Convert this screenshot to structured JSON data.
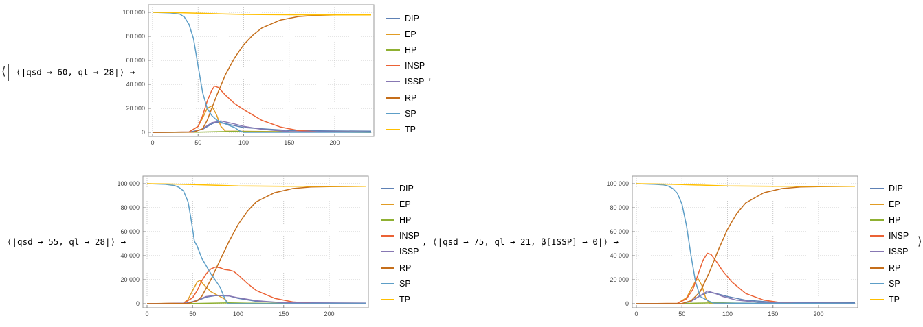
{
  "labels": {
    "top": {
      "open": "⟨",
      "text": "⟨|qsd → 60, ql → 28|⟩",
      "arrow": "→",
      "comma": ","
    },
    "bottom_left": {
      "text": "⟨|qsd → 55, ql → 28|⟩",
      "arrow": "→",
      "comma": ","
    },
    "bottom_right": {
      "text": "⟨|qsd → 75, ql → 21, β[ISSP] → 0|⟩",
      "arrow": "→",
      "close": "⟩"
    }
  },
  "legend": [
    {
      "name": "DIP",
      "color": "#5E81B5"
    },
    {
      "name": "EP",
      "color": "#E19C24"
    },
    {
      "name": "HP",
      "color": "#8FB032"
    },
    {
      "name": "INSP",
      "color": "#EB6235"
    },
    {
      "name": "ISSP",
      "color": "#8778B3"
    },
    {
      "name": "RP",
      "color": "#C56E1A"
    },
    {
      "name": "SP",
      "color": "#5D9EC7"
    },
    {
      "name": "TP",
      "color": "#FFBF00"
    }
  ],
  "chart_data": [
    {
      "type": "line",
      "xlim": [
        0,
        240
      ],
      "ylim": [
        0,
        100000
      ],
      "xticks": [
        "0",
        "50",
        "100",
        "150",
        "200"
      ],
      "yticks": [
        "0",
        "20 000",
        "40 000",
        "60 000",
        "80 000",
        "100 000"
      ],
      "grid": true,
      "legend_position": "right",
      "series": [
        {
          "name": "DIP",
          "color": "#5E81B5",
          "x": [
            0,
            40,
            55,
            65,
            70,
            80,
            100,
            150,
            240
          ],
          "y": [
            0,
            100,
            2500,
            7000,
            8500,
            7200,
            4000,
            1500,
            1000
          ]
        },
        {
          "name": "EP",
          "color": "#E19C24",
          "x": [
            0,
            40,
            50,
            55,
            60,
            65,
            70,
            75,
            80,
            240
          ],
          "y": [
            0,
            300,
            5000,
            12000,
            20000,
            22000,
            15000,
            5000,
            1000,
            0
          ]
        },
        {
          "name": "HP",
          "color": "#8FB032",
          "x": [
            0,
            50,
            70,
            90,
            110,
            240
          ],
          "y": [
            0,
            100,
            500,
            800,
            500,
            0
          ]
        },
        {
          "name": "INSP",
          "color": "#EB6235",
          "x": [
            0,
            40,
            50,
            55,
            60,
            65,
            68,
            72,
            80,
            90,
            100,
            120,
            140,
            160,
            180,
            200,
            240
          ],
          "y": [
            0,
            300,
            5000,
            14000,
            26000,
            35000,
            38500,
            37500,
            31000,
            24000,
            19000,
            10000,
            4500,
            1500,
            500,
            300,
            200
          ]
        },
        {
          "name": "ISSP",
          "color": "#8778B3",
          "x": [
            0,
            45,
            55,
            65,
            75,
            90,
            100,
            120,
            150,
            240
          ],
          "y": [
            0,
            300,
            3000,
            8000,
            9500,
            7000,
            5000,
            2500,
            600,
            200
          ]
        },
        {
          "name": "RP",
          "color": "#C56E1A",
          "x": [
            0,
            45,
            55,
            60,
            70,
            80,
            90,
            100,
            110,
            120,
            140,
            160,
            180,
            200,
            240
          ],
          "y": [
            0,
            200,
            3000,
            10000,
            30000,
            48000,
            62000,
            73000,
            81000,
            87000,
            93500,
            96500,
            97500,
            97800,
            98000
          ]
        },
        {
          "name": "SP",
          "color": "#5D9EC7",
          "x": [
            0,
            20,
            30,
            35,
            40,
            45,
            50,
            55,
            60,
            65,
            70,
            75,
            80,
            85,
            90,
            95,
            100,
            240
          ],
          "y": [
            100000,
            99500,
            98500,
            96000,
            90000,
            78000,
            55000,
            33000,
            20000,
            14000,
            10500,
            8500,
            7000,
            5500,
            4000,
            1500,
            0,
            0
          ]
        },
        {
          "name": "TP",
          "color": "#FFBF00",
          "x": [
            0,
            20,
            50,
            80,
            100,
            150,
            200,
            240
          ],
          "y": [
            100000,
            99800,
            99300,
            98600,
            98300,
            98000,
            97900,
            97900
          ]
        }
      ]
    },
    {
      "type": "line",
      "xlim": [
        0,
        240
      ],
      "ylim": [
        0,
        100000
      ],
      "xticks": [
        "0",
        "50",
        "100",
        "150",
        "200"
      ],
      "yticks": [
        "0",
        "20 000",
        "40 000",
        "60 000",
        "80 000",
        "100 000"
      ],
      "grid": true,
      "legend_position": "right",
      "series": [
        {
          "name": "DIP",
          "color": "#5E81B5",
          "x": [
            0,
            40,
            55,
            65,
            75,
            90,
            100,
            120,
            150,
            240
          ],
          "y": [
            0,
            100,
            2500,
            5500,
            6800,
            6500,
            4500,
            2000,
            800,
            500
          ]
        },
        {
          "name": "EP",
          "color": "#E19C24",
          "x": [
            0,
            40,
            45,
            50,
            55,
            58,
            62,
            70,
            80,
            85,
            90,
            240
          ],
          "y": [
            0,
            500,
            3500,
            11000,
            18000,
            19500,
            16000,
            10000,
            6000,
            4000,
            0,
            0
          ]
        },
        {
          "name": "HP",
          "color": "#8FB032",
          "x": [
            0,
            50,
            70,
            90,
            110,
            240
          ],
          "y": [
            0,
            100,
            400,
            700,
            400,
            0
          ]
        },
        {
          "name": "INSP",
          "color": "#EB6235",
          "x": [
            0,
            40,
            50,
            55,
            60,
            65,
            70,
            75,
            80,
            85,
            90,
            95,
            100,
            110,
            120,
            140,
            160,
            180,
            200,
            240
          ],
          "y": [
            0,
            400,
            5000,
            11000,
            19000,
            25000,
            29000,
            30500,
            30000,
            28500,
            28000,
            27000,
            24000,
            17000,
            11000,
            4500,
            1500,
            500,
            300,
            200
          ]
        },
        {
          "name": "ISSP",
          "color": "#8778B3",
          "x": [
            0,
            45,
            55,
            65,
            75,
            85,
            90,
            100,
            120,
            150,
            240
          ],
          "y": [
            0,
            400,
            3000,
            6000,
            7000,
            6800,
            6500,
            5000,
            2500,
            800,
            300
          ]
        },
        {
          "name": "RP",
          "color": "#C56E1A",
          "x": [
            0,
            45,
            55,
            60,
            70,
            80,
            90,
            100,
            110,
            120,
            140,
            160,
            180,
            200,
            240
          ],
          "y": [
            0,
            200,
            2500,
            6000,
            20000,
            36000,
            52000,
            66000,
            77000,
            85000,
            92500,
            96000,
            97300,
            97600,
            97800
          ]
        },
        {
          "name": "SP",
          "color": "#5D9EC7",
          "x": [
            0,
            20,
            30,
            35,
            40,
            45,
            48,
            52,
            55,
            60,
            70,
            80,
            85,
            88,
            90,
            240
          ],
          "y": [
            100000,
            99500,
            98500,
            97000,
            94000,
            85000,
            72000,
            52000,
            48000,
            38000,
            25000,
            14000,
            5000,
            500,
            0,
            0
          ]
        },
        {
          "name": "TP",
          "color": "#FFBF00",
          "x": [
            0,
            20,
            50,
            80,
            100,
            150,
            200,
            240
          ],
          "y": [
            100000,
            99800,
            99300,
            98600,
            98200,
            97900,
            97800,
            97800
          ]
        }
      ]
    },
    {
      "type": "line",
      "xlim": [
        0,
        240
      ],
      "ylim": [
        0,
        100000
      ],
      "xticks": [
        "0",
        "50",
        "100",
        "150",
        "200"
      ],
      "yticks": [
        "0",
        "20 000",
        "40 000",
        "60 000",
        "80 000",
        "100 000"
      ],
      "grid": true,
      "legend_position": "right",
      "series": [
        {
          "name": "DIP",
          "color": "#5E81B5",
          "x": [
            0,
            50,
            60,
            70,
            80,
            90,
            100,
            120,
            150,
            240
          ],
          "y": [
            0,
            200,
            2000,
            7000,
            9500,
            8000,
            6000,
            3000,
            1200,
            1000
          ]
        },
        {
          "name": "EP",
          "color": "#E19C24",
          "x": [
            0,
            45,
            55,
            60,
            65,
            68,
            72,
            76,
            80,
            240
          ],
          "y": [
            0,
            300,
            5000,
            12000,
            19000,
            20500,
            15000,
            5000,
            500,
            0
          ]
        },
        {
          "name": "HP",
          "color": "#8FB032",
          "x": [
            0,
            50,
            70,
            90,
            110,
            240
          ],
          "y": [
            0,
            100,
            500,
            800,
            500,
            0
          ]
        },
        {
          "name": "INSP",
          "color": "#EB6235",
          "x": [
            0,
            45,
            55,
            62,
            68,
            73,
            78,
            82,
            88,
            95,
            105,
            120,
            140,
            160,
            180,
            240
          ],
          "y": [
            0,
            300,
            4000,
            12000,
            25000,
            36000,
            42000,
            41000,
            35000,
            27000,
            18000,
            8500,
            3000,
            800,
            300,
            200
          ]
        },
        {
          "name": "ISSP",
          "color": "#8778B3",
          "x": [
            0,
            50,
            60,
            70,
            78,
            85,
            95,
            110,
            140,
            240
          ],
          "y": [
            0,
            200,
            2000,
            6500,
            10500,
            9000,
            6000,
            3000,
            800,
            200
          ]
        },
        {
          "name": "RP",
          "color": "#C56E1A",
          "x": [
            0,
            50,
            60,
            70,
            80,
            90,
            100,
            110,
            120,
            140,
            160,
            180,
            200,
            240
          ],
          "y": [
            0,
            200,
            2500,
            10000,
            26000,
            45000,
            62000,
            75000,
            84000,
            92500,
            96000,
            97300,
            97600,
            97800
          ]
        },
        {
          "name": "SP",
          "color": "#5D9EC7",
          "x": [
            0,
            20,
            30,
            35,
            40,
            45,
            50,
            55,
            60,
            65,
            70,
            75,
            80,
            85,
            240
          ],
          "y": [
            100000,
            99500,
            99000,
            98000,
            96000,
            92000,
            83000,
            65000,
            40000,
            18000,
            6000,
            4000,
            2000,
            500,
            0
          ]
        },
        {
          "name": "TP",
          "color": "#FFBF00",
          "x": [
            0,
            20,
            50,
            80,
            100,
            150,
            200,
            240
          ],
          "y": [
            100000,
            99800,
            99300,
            98600,
            98200,
            97900,
            97800,
            97800
          ]
        }
      ]
    }
  ]
}
